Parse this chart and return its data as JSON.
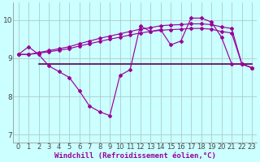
{
  "hours": [
    0,
    1,
    2,
    3,
    4,
    5,
    6,
    7,
    8,
    9,
    10,
    11,
    12,
    13,
    14,
    15,
    16,
    17,
    18,
    19,
    20,
    21,
    22,
    23
  ],
  "wc": [
    9.1,
    9.3,
    9.1,
    8.8,
    8.65,
    8.5,
    8.15,
    7.75,
    7.6,
    7.5,
    8.55,
    8.7,
    9.85,
    9.7,
    9.75,
    9.35,
    9.45,
    10.05,
    10.05,
    9.95,
    9.55,
    8.85,
    8.85,
    8.75
  ],
  "line2": [
    9.1,
    9.1,
    9.15,
    9.2,
    9.25,
    9.3,
    9.38,
    9.45,
    9.52,
    9.58,
    9.64,
    9.7,
    9.76,
    9.8,
    9.85,
    9.87,
    9.88,
    9.9,
    9.9,
    9.88,
    9.82,
    9.78,
    8.85,
    8.75
  ],
  "line3": [
    9.1,
    9.1,
    9.13,
    9.17,
    9.21,
    9.25,
    9.32,
    9.38,
    9.44,
    9.5,
    9.55,
    9.61,
    9.66,
    9.7,
    9.73,
    9.75,
    9.76,
    9.78,
    9.78,
    9.76,
    9.7,
    9.66,
    8.85,
    8.75
  ],
  "hline_x0": 2,
  "hline_x1": 23,
  "hline_y": 8.85,
  "line_color": "#990099",
  "bg_color": "#ccffff",
  "grid_color": "#aacccc",
  "ylim": [
    6.8,
    10.45
  ],
  "xlim": [
    -0.5,
    23.5
  ],
  "yticks": [
    7,
    8,
    9,
    10
  ],
  "xticks": [
    0,
    1,
    2,
    3,
    4,
    5,
    6,
    7,
    8,
    9,
    10,
    11,
    12,
    13,
    14,
    15,
    16,
    17,
    18,
    19,
    20,
    21,
    22,
    23
  ],
  "xlabel": "Windchill (Refroidissement éolien,°C)",
  "xlabel_fontsize": 6.5,
  "tick_fontsize": 6.0
}
